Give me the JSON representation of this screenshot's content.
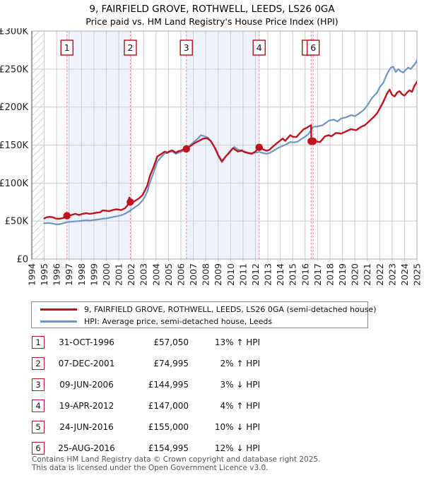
{
  "header": {
    "title": "9, FAIRFIELD GROVE, ROTHWELL, LEEDS, LS26 0GA",
    "subtitle": "Price paid vs. HM Land Registry's House Price Index (HPI)"
  },
  "legend": {
    "items": [
      {
        "label": "9, FAIRFIELD GROVE, ROTHWELL, LEEDS, LS26 0GA (semi-detached house)",
        "color": "#c0111f"
      },
      {
        "label": "HPI: Average price, semi-detached house, Leeds",
        "color": "#7094c4"
      }
    ]
  },
  "transactions": [
    {
      "num": "1",
      "date": "31-OCT-1996",
      "price": "£57,050",
      "hpi": "13% ↑ HPI"
    },
    {
      "num": "2",
      "date": "07-DEC-2001",
      "price": "£74,995",
      "hpi": "2% ↑ HPI"
    },
    {
      "num": "3",
      "date": "09-JUN-2006",
      "price": "£144,995",
      "hpi": "3% ↓ HPI"
    },
    {
      "num": "4",
      "date": "19-APR-2012",
      "price": "£147,000",
      "hpi": "4% ↑ HPI"
    },
    {
      "num": "5",
      "date": "24-JUN-2016",
      "price": "£155,000",
      "hpi": "10% ↓ HPI"
    },
    {
      "num": "6",
      "date": "25-AUG-2016",
      "price": "£154,995",
      "hpi": "12% ↓ HPI"
    }
  ],
  "footer": {
    "line1": "Contains HM Land Registry data © Crown copyright and database right 2025.",
    "line2": "This data is licensed under the Open Government Licence v3.0."
  },
  "chart_data": {
    "type": "line",
    "title": "Price paid vs. HM Land Registry's House Price Index (HPI)",
    "unit": "GBP thousands",
    "xlim": [
      1994,
      2025
    ],
    "ylim": [
      0,
      300
    ],
    "grid": true,
    "legend_position": "below",
    "yticks": [
      [
        0,
        "£0"
      ],
      [
        50,
        "£50K"
      ],
      [
        100,
        "£100K"
      ],
      [
        150,
        "£150K"
      ],
      [
        200,
        "£200K"
      ],
      [
        250,
        "£250K"
      ],
      [
        300,
        "£300K"
      ]
    ],
    "xticks": [
      1994,
      1995,
      1996,
      1997,
      1998,
      1999,
      2000,
      2001,
      2002,
      2003,
      2004,
      2005,
      2006,
      2007,
      2008,
      2009,
      2010,
      2011,
      2012,
      2013,
      2014,
      2015,
      2016,
      2017,
      2018,
      2019,
      2020,
      2021,
      2022,
      2023,
      2024,
      2025
    ],
    "hatch_span": [
      1994,
      1995
    ],
    "shaded_spans": [
      [
        1996.83,
        2001.93
      ],
      [
        2006.44,
        2012.3
      ],
      [
        2016.48,
        2016.65
      ]
    ],
    "colors": {
      "grid": "#cccccc",
      "border": "#a8a8a8",
      "band": "#eef2fb",
      "hatch": "#b9bdc7",
      "sale_line": "#f38080",
      "marker_box_border": "#b01018",
      "red": "#c0111f",
      "blue": "#7094c4"
    },
    "sales": [
      {
        "n": 1,
        "date": "31-OCT-1996",
        "x": 1996.83,
        "price_k": 57.05,
        "box_label": "1",
        "box_dx": 0
      },
      {
        "n": 2,
        "date": "07-DEC-2001",
        "x": 2001.93,
        "price_k": 74.995,
        "box_label": "2",
        "box_dx": 0
      },
      {
        "n": 3,
        "date": "09-JUN-2006",
        "x": 2006.44,
        "price_k": 144.995,
        "box_label": "3",
        "box_dx": 0
      },
      {
        "n": 4,
        "date": "19-APR-2012",
        "x": 2012.3,
        "price_k": 147.0,
        "box_label": "4",
        "box_dx": 0
      },
      {
        "n": 5,
        "date": "24-JUN-2016",
        "x": 2016.48,
        "price_k": 155.0,
        "box_label": "",
        "box_dx": -4
      },
      {
        "n": 6,
        "date": "25-AUG-2016",
        "x": 2016.65,
        "price_k": 154.995,
        "box_label": "6",
        "box_dx": 0
      }
    ],
    "series": [
      {
        "name": "9, FAIRFIELD GROVE, ROTHWELL, LEEDS, LS26 0GA (semi-detached house)",
        "color": "#c0111f",
        "width": 2.4,
        "points": [
          [
            1995.0,
            53.5
          ],
          [
            1995.2,
            55
          ],
          [
            1995.4,
            55.5
          ],
          [
            1995.7,
            55
          ],
          [
            1995.9,
            53.5
          ],
          [
            1996.1,
            53
          ],
          [
            1996.4,
            53.5
          ],
          [
            1996.6,
            54.5
          ],
          [
            1996.83,
            57.05
          ],
          [
            1997.1,
            57.5
          ],
          [
            1997.3,
            58.5
          ],
          [
            1997.5,
            59.5
          ],
          [
            1997.8,
            58
          ],
          [
            1998.1,
            59.5
          ],
          [
            1998.4,
            60.5
          ],
          [
            1998.6,
            59.5
          ],
          [
            1998.9,
            60
          ],
          [
            1999.2,
            61
          ],
          [
            1999.5,
            61.5
          ],
          [
            1999.7,
            64
          ],
          [
            2000.0,
            63.5
          ],
          [
            2000.2,
            63
          ],
          [
            2000.5,
            64.5
          ],
          [
            2000.8,
            65.5
          ],
          [
            2001.0,
            65
          ],
          [
            2001.2,
            64.5
          ],
          [
            2001.5,
            67
          ],
          [
            2001.7,
            70.5
          ],
          [
            2001.85,
            81
          ],
          [
            2001.93,
            75
          ],
          [
            2002.1,
            74.5
          ],
          [
            2002.3,
            76.5
          ],
          [
            2002.6,
            79.5
          ],
          [
            2002.9,
            84
          ],
          [
            2003.1,
            90
          ],
          [
            2003.3,
            97
          ],
          [
            2003.5,
            109
          ],
          [
            2003.8,
            121
          ],
          [
            2004.1,
            135
          ],
          [
            2004.4,
            138
          ],
          [
            2004.7,
            141.5
          ],
          [
            2004.9,
            140
          ],
          [
            2005.1,
            142
          ],
          [
            2005.3,
            143
          ],
          [
            2005.6,
            140
          ],
          [
            2005.8,
            142
          ],
          [
            2006.0,
            142.5
          ],
          [
            2006.2,
            144.5
          ],
          [
            2006.44,
            145
          ],
          [
            2006.7,
            148
          ],
          [
            2007.1,
            152.5
          ],
          [
            2007.4,
            155
          ],
          [
            2007.8,
            158.5
          ],
          [
            2008.1,
            159
          ],
          [
            2008.4,
            155.5
          ],
          [
            2008.8,
            144.5
          ],
          [
            2009.0,
            137
          ],
          [
            2009.3,
            128.5
          ],
          [
            2009.6,
            135
          ],
          [
            2009.9,
            140
          ],
          [
            2010.2,
            146
          ],
          [
            2010.4,
            143.5
          ],
          [
            2010.6,
            141.5
          ],
          [
            2010.9,
            143
          ],
          [
            2011.1,
            141
          ],
          [
            2011.4,
            139.5
          ],
          [
            2011.7,
            138.5
          ],
          [
            2012.0,
            141.5
          ],
          [
            2012.3,
            147
          ],
          [
            2012.6,
            144.5
          ],
          [
            2012.9,
            142.5
          ],
          [
            2013.1,
            143.5
          ],
          [
            2013.4,
            148
          ],
          [
            2013.7,
            152
          ],
          [
            2014.0,
            156
          ],
          [
            2014.2,
            158.5
          ],
          [
            2014.4,
            155.5
          ],
          [
            2014.8,
            163
          ],
          [
            2015.0,
            161
          ],
          [
            2015.3,
            160.5
          ],
          [
            2015.6,
            166
          ],
          [
            2015.9,
            171
          ],
          [
            2016.1,
            172.5
          ],
          [
            2016.3,
            174.5
          ],
          [
            2016.48,
            176
          ],
          [
            2016.5,
            155
          ],
          [
            2016.65,
            155
          ],
          [
            2017.0,
            154.5
          ],
          [
            2017.2,
            154
          ],
          [
            2017.6,
            161.5
          ],
          [
            2017.9,
            163
          ],
          [
            2018.1,
            161.5
          ],
          [
            2018.5,
            166
          ],
          [
            2018.9,
            165
          ],
          [
            2019.3,
            168
          ],
          [
            2019.7,
            171
          ],
          [
            2020.1,
            169.5
          ],
          [
            2020.5,
            174
          ],
          [
            2020.8,
            176
          ],
          [
            2021.2,
            182
          ],
          [
            2021.5,
            186.5
          ],
          [
            2021.8,
            192
          ],
          [
            2022.0,
            198
          ],
          [
            2022.3,
            207
          ],
          [
            2022.6,
            218
          ],
          [
            2022.8,
            223
          ],
          [
            2023.0,
            216
          ],
          [
            2023.2,
            214
          ],
          [
            2023.4,
            219
          ],
          [
            2023.6,
            221
          ],
          [
            2023.8,
            217
          ],
          [
            2024.0,
            215
          ],
          [
            2024.2,
            219
          ],
          [
            2024.4,
            222
          ],
          [
            2024.6,
            220
          ],
          [
            2024.8,
            228
          ],
          [
            2025.0,
            233
          ],
          [
            2025.1,
            236
          ]
        ]
      },
      {
        "name": "HPI: Average price, semi-detached house, Leeds",
        "color": "#7094c4",
        "width": 2.2,
        "points": [
          [
            1995.0,
            47
          ],
          [
            1995.3,
            47.5
          ],
          [
            1995.6,
            47
          ],
          [
            1995.9,
            46
          ],
          [
            1996.1,
            45.5
          ],
          [
            1996.4,
            46.5
          ],
          [
            1996.83,
            48.5
          ],
          [
            1997.1,
            49
          ],
          [
            1997.4,
            49.5
          ],
          [
            1997.8,
            50
          ],
          [
            1998.1,
            50.5
          ],
          [
            1998.4,
            51
          ],
          [
            1998.7,
            50.5
          ],
          [
            1999.0,
            51.5
          ],
          [
            1999.3,
            52
          ],
          [
            1999.7,
            53
          ],
          [
            2000.0,
            53.5
          ],
          [
            2000.3,
            54.5
          ],
          [
            2000.6,
            55.5
          ],
          [
            2000.9,
            56.5
          ],
          [
            2001.2,
            57.7
          ],
          [
            2001.5,
            59.5
          ],
          [
            2001.9,
            63.5
          ],
          [
            2002.2,
            67
          ],
          [
            2002.6,
            71.5
          ],
          [
            2002.9,
            77
          ],
          [
            2003.1,
            82
          ],
          [
            2003.3,
            89
          ],
          [
            2003.5,
            100
          ],
          [
            2003.8,
            114
          ],
          [
            2004.1,
            128
          ],
          [
            2004.4,
            134
          ],
          [
            2004.7,
            139
          ],
          [
            2004.9,
            139.5
          ],
          [
            2005.1,
            141
          ],
          [
            2005.3,
            141.5
          ],
          [
            2005.6,
            138.5
          ],
          [
            2005.8,
            140
          ],
          [
            2006.0,
            141
          ],
          [
            2006.2,
            143
          ],
          [
            2006.44,
            146.5
          ],
          [
            2006.7,
            149
          ],
          [
            2007.1,
            155
          ],
          [
            2007.4,
            159
          ],
          [
            2007.6,
            163
          ],
          [
            2007.9,
            161.5
          ],
          [
            2008.2,
            159.5
          ],
          [
            2008.6,
            150.5
          ],
          [
            2009.0,
            136
          ],
          [
            2009.3,
            127.5
          ],
          [
            2009.6,
            134.5
          ],
          [
            2009.9,
            141
          ],
          [
            2010.3,
            147.5
          ],
          [
            2010.6,
            144
          ],
          [
            2010.9,
            142.5
          ],
          [
            2011.1,
            141.5
          ],
          [
            2011.4,
            140
          ],
          [
            2011.7,
            139.5
          ],
          [
            2012.0,
            140
          ],
          [
            2012.3,
            141
          ],
          [
            2012.6,
            139.5
          ],
          [
            2012.9,
            138.5
          ],
          [
            2013.2,
            140
          ],
          [
            2013.5,
            143
          ],
          [
            2013.8,
            146
          ],
          [
            2014.2,
            149
          ],
          [
            2014.5,
            151
          ],
          [
            2014.8,
            154
          ],
          [
            2015.1,
            153.5
          ],
          [
            2015.4,
            154.5
          ],
          [
            2015.7,
            158
          ],
          [
            2016.0,
            161
          ],
          [
            2016.3,
            165
          ],
          [
            2016.65,
            174
          ],
          [
            2017.0,
            174.5
          ],
          [
            2017.4,
            176
          ],
          [
            2017.9,
            182
          ],
          [
            2018.3,
            183.5
          ],
          [
            2018.6,
            181
          ],
          [
            2018.9,
            185
          ],
          [
            2019.3,
            186.5
          ],
          [
            2019.7,
            189.5
          ],
          [
            2020.0,
            188
          ],
          [
            2020.3,
            191
          ],
          [
            2020.7,
            196
          ],
          [
            2021.0,
            202
          ],
          [
            2021.3,
            210
          ],
          [
            2021.5,
            214
          ],
          [
            2021.8,
            219
          ],
          [
            2022.0,
            226
          ],
          [
            2022.3,
            232
          ],
          [
            2022.5,
            240
          ],
          [
            2022.7,
            247
          ],
          [
            2022.9,
            252
          ],
          [
            2023.1,
            253
          ],
          [
            2023.3,
            246
          ],
          [
            2023.5,
            250
          ],
          [
            2023.7,
            247
          ],
          [
            2023.9,
            245.5
          ],
          [
            2024.1,
            249
          ],
          [
            2024.3,
            252
          ],
          [
            2024.5,
            250
          ],
          [
            2024.7,
            254
          ],
          [
            2024.9,
            258
          ],
          [
            2025.1,
            265
          ]
        ]
      }
    ]
  }
}
